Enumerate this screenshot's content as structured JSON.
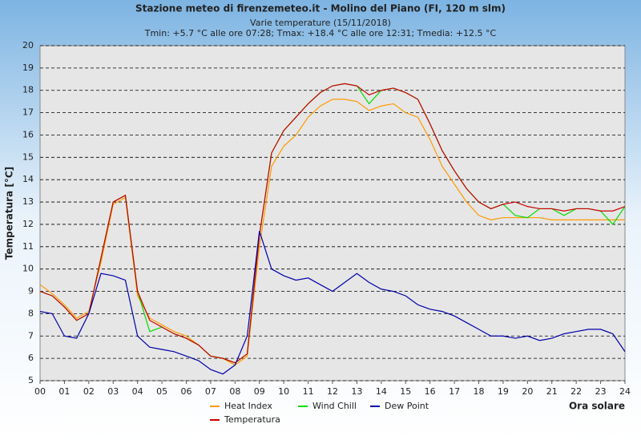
{
  "chart_data": {
    "type": "line",
    "title": "Stazione meteo di firenzemeteo.it - Molino del Piano (FI, 120 m slm)",
    "subtitle": "Varie temperature (15/11/2018)",
    "stats": "Tmin: +5.7 °C alle ore 07:28; Tmax: +18.4 °C alle ore 12:31; Tmedia: +12.5 °C",
    "x_label": "Ora solare",
    "y_label": "Temperatura [°C]",
    "x": [
      0,
      0.5,
      1,
      1.5,
      2,
      2.5,
      3,
      3.5,
      4,
      4.5,
      5,
      5.5,
      6,
      6.5,
      7,
      7.5,
      8,
      8.5,
      9,
      9.5,
      10,
      10.5,
      11,
      11.5,
      12,
      12.5,
      13,
      13.5,
      14,
      14.5,
      15,
      15.5,
      16,
      16.5,
      17,
      17.5,
      18,
      18.5,
      19,
      19.5,
      20,
      20.5,
      21,
      21.5,
      22,
      22.5,
      23,
      23.5,
      24
    ],
    "series": [
      {
        "name": "Heat Index",
        "color": "#ff9900",
        "values": [
          9.3,
          8.9,
          8.4,
          7.8,
          8.1,
          10.3,
          12.9,
          13.2,
          8.8,
          7.8,
          7.5,
          7.2,
          7.0,
          6.6,
          6.1,
          6.0,
          5.7,
          6.1,
          11.0,
          14.6,
          15.5,
          16.0,
          16.8,
          17.3,
          17.6,
          17.6,
          17.5,
          17.1,
          17.3,
          17.4,
          17.0,
          16.8,
          15.8,
          14.6,
          13.8,
          13.0,
          12.4,
          12.2,
          12.3,
          12.3,
          12.3,
          12.3,
          12.2,
          12.2,
          12.2,
          12.2,
          12.2,
          12.2,
          12.2
        ]
      },
      {
        "name": "Temperatura",
        "color": "#cc0000",
        "values": [
          9.0,
          8.8,
          8.3,
          7.7,
          8.0,
          10.5,
          13.0,
          13.3,
          9.0,
          7.7,
          7.4,
          7.1,
          6.9,
          6.6,
          6.1,
          6.0,
          5.8,
          6.2,
          11.5,
          15.2,
          16.2,
          16.8,
          17.4,
          17.9,
          18.2,
          18.3,
          18.2,
          17.8,
          18.0,
          18.1,
          17.9,
          17.6,
          16.5,
          15.3,
          14.4,
          13.6,
          13.0,
          12.7,
          12.9,
          13.0,
          12.8,
          12.7,
          12.7,
          12.6,
          12.7,
          12.7,
          12.6,
          12.6,
          12.8
        ]
      },
      {
        "name": "Wind Chill",
        "color": "#00dd00",
        "values": [
          9.0,
          8.8,
          8.3,
          7.7,
          8.0,
          10.5,
          13.0,
          13.3,
          9.0,
          7.2,
          7.4,
          7.1,
          6.9,
          6.6,
          6.1,
          6.0,
          5.8,
          6.2,
          11.5,
          15.2,
          16.2,
          16.8,
          17.4,
          17.9,
          18.2,
          18.3,
          18.2,
          17.4,
          18.0,
          18.1,
          17.9,
          17.6,
          16.5,
          15.3,
          14.4,
          13.6,
          13.0,
          12.7,
          12.9,
          12.4,
          12.3,
          12.7,
          12.7,
          12.4,
          12.7,
          12.7,
          12.6,
          12.0,
          12.8
        ]
      },
      {
        "name": "Dew Point",
        "color": "#0000aa",
        "values": [
          8.1,
          8.0,
          7.0,
          6.9,
          8.0,
          9.8,
          9.7,
          9.5,
          7.0,
          6.5,
          6.4,
          6.3,
          6.1,
          5.9,
          5.5,
          5.3,
          5.7,
          7.0,
          11.7,
          10.0,
          9.7,
          9.5,
          9.6,
          9.3,
          9.0,
          9.4,
          9.8,
          9.4,
          9.1,
          9.0,
          8.8,
          8.4,
          8.2,
          8.1,
          7.9,
          7.6,
          7.3,
          7.0,
          7.0,
          6.9,
          7.0,
          6.8,
          6.9,
          7.1,
          7.2,
          7.3,
          7.3,
          7.1,
          6.3
        ]
      }
    ],
    "xlim": [
      0,
      24
    ],
    "xticks": [
      {
        "value": 0,
        "label": "00"
      },
      {
        "value": 1,
        "label": "01"
      },
      {
        "value": 2,
        "label": "02"
      },
      {
        "value": 3,
        "label": "03"
      },
      {
        "value": 4,
        "label": "04"
      },
      {
        "value": 5,
        "label": "05"
      },
      {
        "value": 6,
        "label": "06"
      },
      {
        "value": 7,
        "label": "07"
      },
      {
        "value": 8,
        "label": "08"
      },
      {
        "value": 9,
        "label": "09"
      },
      10,
      11,
      12,
      13,
      14,
      15,
      16,
      17,
      18,
      19,
      20,
      21,
      22,
      23,
      24
    ],
    "ylim": [
      5,
      20
    ],
    "yticks": [
      5,
      6,
      7,
      8,
      9,
      10,
      11,
      12,
      13,
      14,
      15,
      16,
      17,
      18,
      19,
      20
    ],
    "grid": true
  }
}
